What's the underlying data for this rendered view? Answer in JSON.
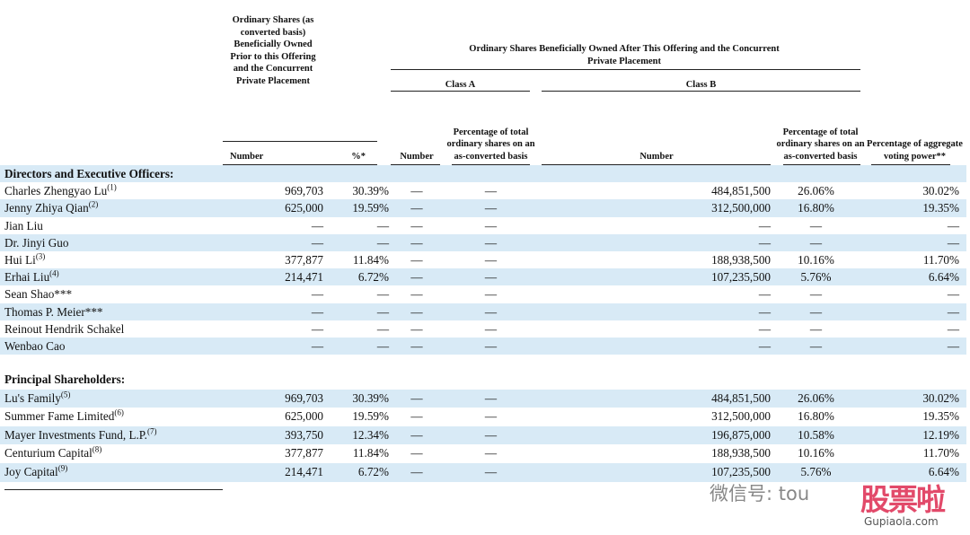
{
  "header": {
    "prior": "Ordinary Shares (as converted basis) Beneficially Owned Prior to this Offering and the Concurrent Private Placement",
    "after": "Ordinary Shares Beneficially Owned After This Offering and the Concurrent Private Placement",
    "class_a": "Class A",
    "class_b": "Class B",
    "columns": [
      "Number",
      "%*",
      "Number",
      "Percentage of total ordinary shares on an as-converted basis",
      "Number",
      "Percentage of total ordinary shares on an as-converted basis",
      "Percentage of aggregate voting power**"
    ]
  },
  "sections": [
    {
      "title": "Directors and Executive Officers:",
      "rows": [
        {
          "name": "Charles Zhengyao Lu",
          "note": "(1)",
          "cells": [
            "969,703",
            "30.39%",
            "—",
            "—",
            "484,851,500",
            "26.06%",
            "30.02%"
          ]
        },
        {
          "name": "Jenny Zhiya Qian",
          "note": "(2)",
          "cells": [
            "625,000",
            "19.59%",
            "—",
            "—",
            "312,500,000",
            "16.80%",
            "19.35%"
          ]
        },
        {
          "name": "Jian Liu",
          "note": null,
          "cells": [
            "—",
            "—",
            "—",
            "—",
            "—",
            "—",
            "—"
          ]
        },
        {
          "name": "Dr. Jinyi Guo",
          "note": null,
          "cells": [
            "—",
            "—",
            "—",
            "—",
            "—",
            "—",
            "—"
          ]
        },
        {
          "name": "Hui Li",
          "note": "(3)",
          "cells": [
            "377,877",
            "11.84%",
            "—",
            "—",
            "188,938,500",
            "10.16%",
            "11.70%"
          ]
        },
        {
          "name": "Erhai Liu",
          "note": "(4)",
          "cells": [
            "214,471",
            "6.72%",
            "—",
            "—",
            "107,235,500",
            "5.76%",
            "6.64%"
          ]
        },
        {
          "name": "Sean Shao***",
          "note": null,
          "cells": [
            "—",
            "—",
            "—",
            "—",
            "—",
            "—",
            "—"
          ]
        },
        {
          "name": "Thomas P. Meier***",
          "note": null,
          "cells": [
            "—",
            "—",
            "—",
            "—",
            "—",
            "—",
            "—"
          ]
        },
        {
          "name": "Reinout Hendrik Schakel",
          "note": null,
          "cells": [
            "—",
            "—",
            "—",
            "—",
            "—",
            "—",
            "—"
          ]
        },
        {
          "name": "Wenbao Cao",
          "note": null,
          "cells": [
            "—",
            "—",
            "—",
            "—",
            "—",
            "—",
            "—"
          ]
        }
      ]
    },
    {
      "title": "Principal Shareholders:",
      "rows": [
        {
          "name": "Lu's Family",
          "note": "(5)",
          "cells": [
            "969,703",
            "30.39%",
            "—",
            "—",
            "484,851,500",
            "26.06%",
            "30.02%"
          ]
        },
        {
          "name": "Summer Fame Limited",
          "note": "(6)",
          "cells": [
            "625,000",
            "19.59%",
            "—",
            "—",
            "312,500,000",
            "16.80%",
            "19.35%"
          ]
        },
        {
          "name": "Mayer Investments Fund, L.P.",
          "note": "(7)",
          "cells": [
            "393,750",
            "12.34%",
            "—",
            "—",
            "196,875,000",
            "10.58%",
            "12.19%"
          ]
        },
        {
          "name": "Centurium Capital",
          "note": "(8)",
          "cells": [
            "377,877",
            "11.84%",
            "—",
            "—",
            "188,938,500",
            "10.16%",
            "11.70%"
          ]
        },
        {
          "name": "Joy Capital",
          "note": "(9)",
          "cells": [
            "214,471",
            "6.72%",
            "—",
            "—",
            "107,235,500",
            "5.76%",
            "6.64%"
          ]
        }
      ]
    }
  ],
  "watermark": {
    "wechat": "微信号: tou",
    "brand": "股票啦",
    "site": "Gupiaola.com"
  }
}
